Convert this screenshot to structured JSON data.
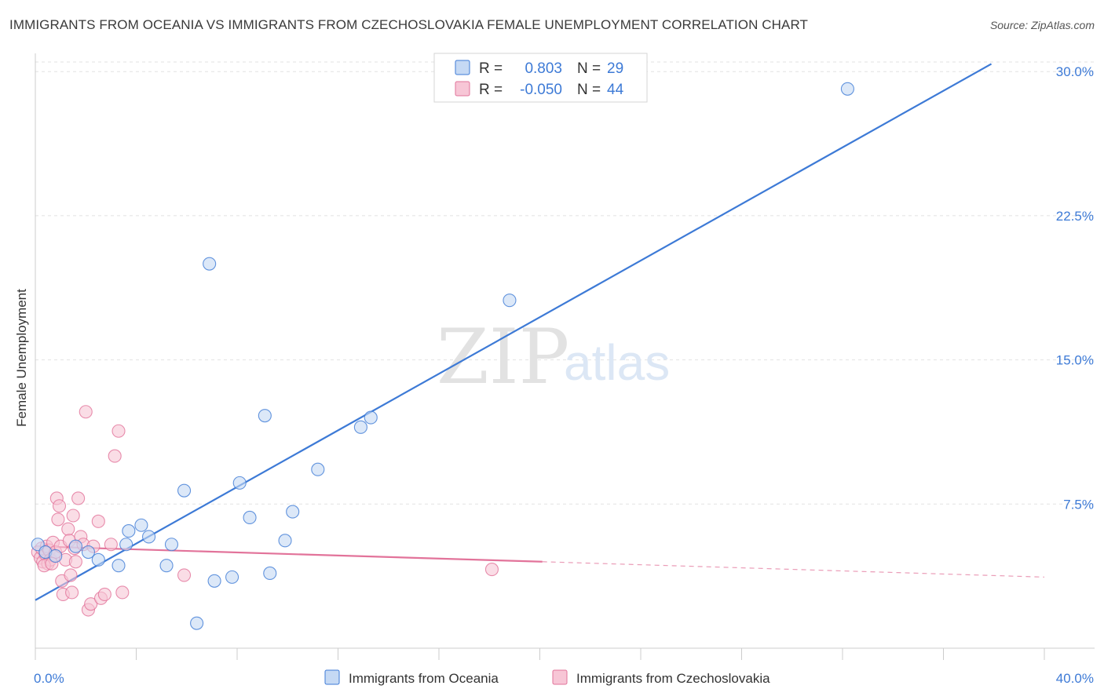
{
  "title": "IMMIGRANTS FROM OCEANIA VS IMMIGRANTS FROM CZECHOSLOVAKIA FEMALE UNEMPLOYMENT CORRELATION CHART",
  "source": "Source: ZipAtlas.com",
  "watermark": {
    "zip": "ZIP",
    "atlas": "atlas"
  },
  "colors": {
    "blue": "#3d7ad6",
    "blue_fill": "#c5d9f4",
    "pink": "#e2739a",
    "pink_fill": "#f7c6d6",
    "grid": "#e2e2e2"
  },
  "stats": [
    {
      "r_label": "R =",
      "r_value": "0.803",
      "n_label": "N =",
      "n_value": "29"
    },
    {
      "r_label": "R =",
      "r_value": "-0.050",
      "n_label": "N =",
      "n_value": "44"
    }
  ],
  "chart_data": {
    "type": "scatter",
    "title": "IMMIGRANTS FROM OCEANIA VS IMMIGRANTS FROM CZECHOSLOVAKIA FEMALE UNEMPLOYMENT CORRELATION CHART",
    "xlabel": "",
    "ylabel": "Female Unemployment",
    "xlim": [
      0,
      40
    ],
    "ylim": [
      0,
      30.5
    ],
    "x_tick_labels": [
      "0.0%",
      "40.0%"
    ],
    "y_ticks": [
      7.5,
      15.0,
      22.5,
      30.0
    ],
    "y_tick_labels": [
      "7.5%",
      "15.0%",
      "22.5%",
      "30.0%"
    ],
    "legend_position": "bottom",
    "series": [
      {
        "name": "Immigrants from Oceania",
        "color": "blue",
        "points": [
          [
            0.1,
            5.4
          ],
          [
            0.4,
            5.0
          ],
          [
            0.8,
            4.8
          ],
          [
            1.6,
            5.3
          ],
          [
            2.1,
            5.0
          ],
          [
            2.5,
            4.6
          ],
          [
            3.3,
            4.3
          ],
          [
            3.6,
            5.4
          ],
          [
            3.7,
            6.1
          ],
          [
            4.2,
            6.4
          ],
          [
            4.5,
            5.8
          ],
          [
            5.2,
            4.3
          ],
          [
            5.4,
            5.4
          ],
          [
            5.9,
            8.2
          ],
          [
            6.4,
            1.3
          ],
          [
            6.9,
            20.0
          ],
          [
            7.1,
            3.5
          ],
          [
            7.8,
            3.7
          ],
          [
            8.1,
            8.6
          ],
          [
            8.5,
            6.8
          ],
          [
            9.1,
            12.1
          ],
          [
            9.3,
            3.9
          ],
          [
            9.9,
            5.6
          ],
          [
            10.2,
            7.1
          ],
          [
            11.2,
            9.3
          ],
          [
            12.9,
            11.5
          ],
          [
            13.3,
            12.0
          ],
          [
            18.8,
            18.1
          ],
          [
            32.2,
            29.1
          ]
        ],
        "trend": {
          "x": [
            0,
            37.9
          ],
          "y": [
            2.5,
            30.4
          ],
          "style": "solid"
        }
      },
      {
        "name": "Immigrants from Czechoslovakia",
        "color": "pink",
        "points": [
          [
            0.1,
            5.0
          ],
          [
            0.2,
            4.7
          ],
          [
            0.25,
            5.2
          ],
          [
            0.3,
            4.5
          ],
          [
            0.4,
            4.9
          ],
          [
            0.45,
            5.3
          ],
          [
            0.5,
            4.4
          ],
          [
            0.55,
            5.1
          ],
          [
            0.6,
            4.6
          ],
          [
            0.7,
            5.5
          ],
          [
            0.75,
            4.8
          ],
          [
            0.8,
            5.0
          ],
          [
            0.85,
            7.8
          ],
          [
            0.9,
            6.7
          ],
          [
            0.95,
            7.4
          ],
          [
            1.0,
            5.3
          ],
          [
            1.05,
            3.5
          ],
          [
            1.1,
            2.8
          ],
          [
            1.2,
            4.6
          ],
          [
            1.3,
            6.2
          ],
          [
            1.35,
            5.6
          ],
          [
            1.4,
            3.8
          ],
          [
            1.45,
            2.9
          ],
          [
            1.5,
            6.9
          ],
          [
            1.55,
            5.2
          ],
          [
            1.6,
            4.5
          ],
          [
            1.7,
            7.8
          ],
          [
            1.8,
            5.8
          ],
          [
            1.9,
            5.4
          ],
          [
            2.0,
            12.3
          ],
          [
            2.1,
            2.0
          ],
          [
            2.2,
            2.3
          ],
          [
            2.3,
            5.3
          ],
          [
            2.5,
            6.6
          ],
          [
            2.6,
            2.6
          ],
          [
            2.75,
            2.8
          ],
          [
            3.0,
            5.4
          ],
          [
            3.15,
            10.0
          ],
          [
            3.3,
            11.3
          ],
          [
            3.45,
            2.9
          ],
          [
            5.9,
            3.8
          ],
          [
            18.1,
            4.1
          ],
          [
            0.35,
            4.3
          ],
          [
            0.65,
            4.4
          ]
        ],
        "trend": {
          "x": [
            0,
            20.1
          ],
          "y": [
            5.3,
            4.5
          ],
          "style": "solid",
          "extended": {
            "x": [
              20.1,
              40
            ],
            "y": [
              4.5,
              3.7
            ],
            "style": "dashed"
          }
        }
      }
    ]
  }
}
